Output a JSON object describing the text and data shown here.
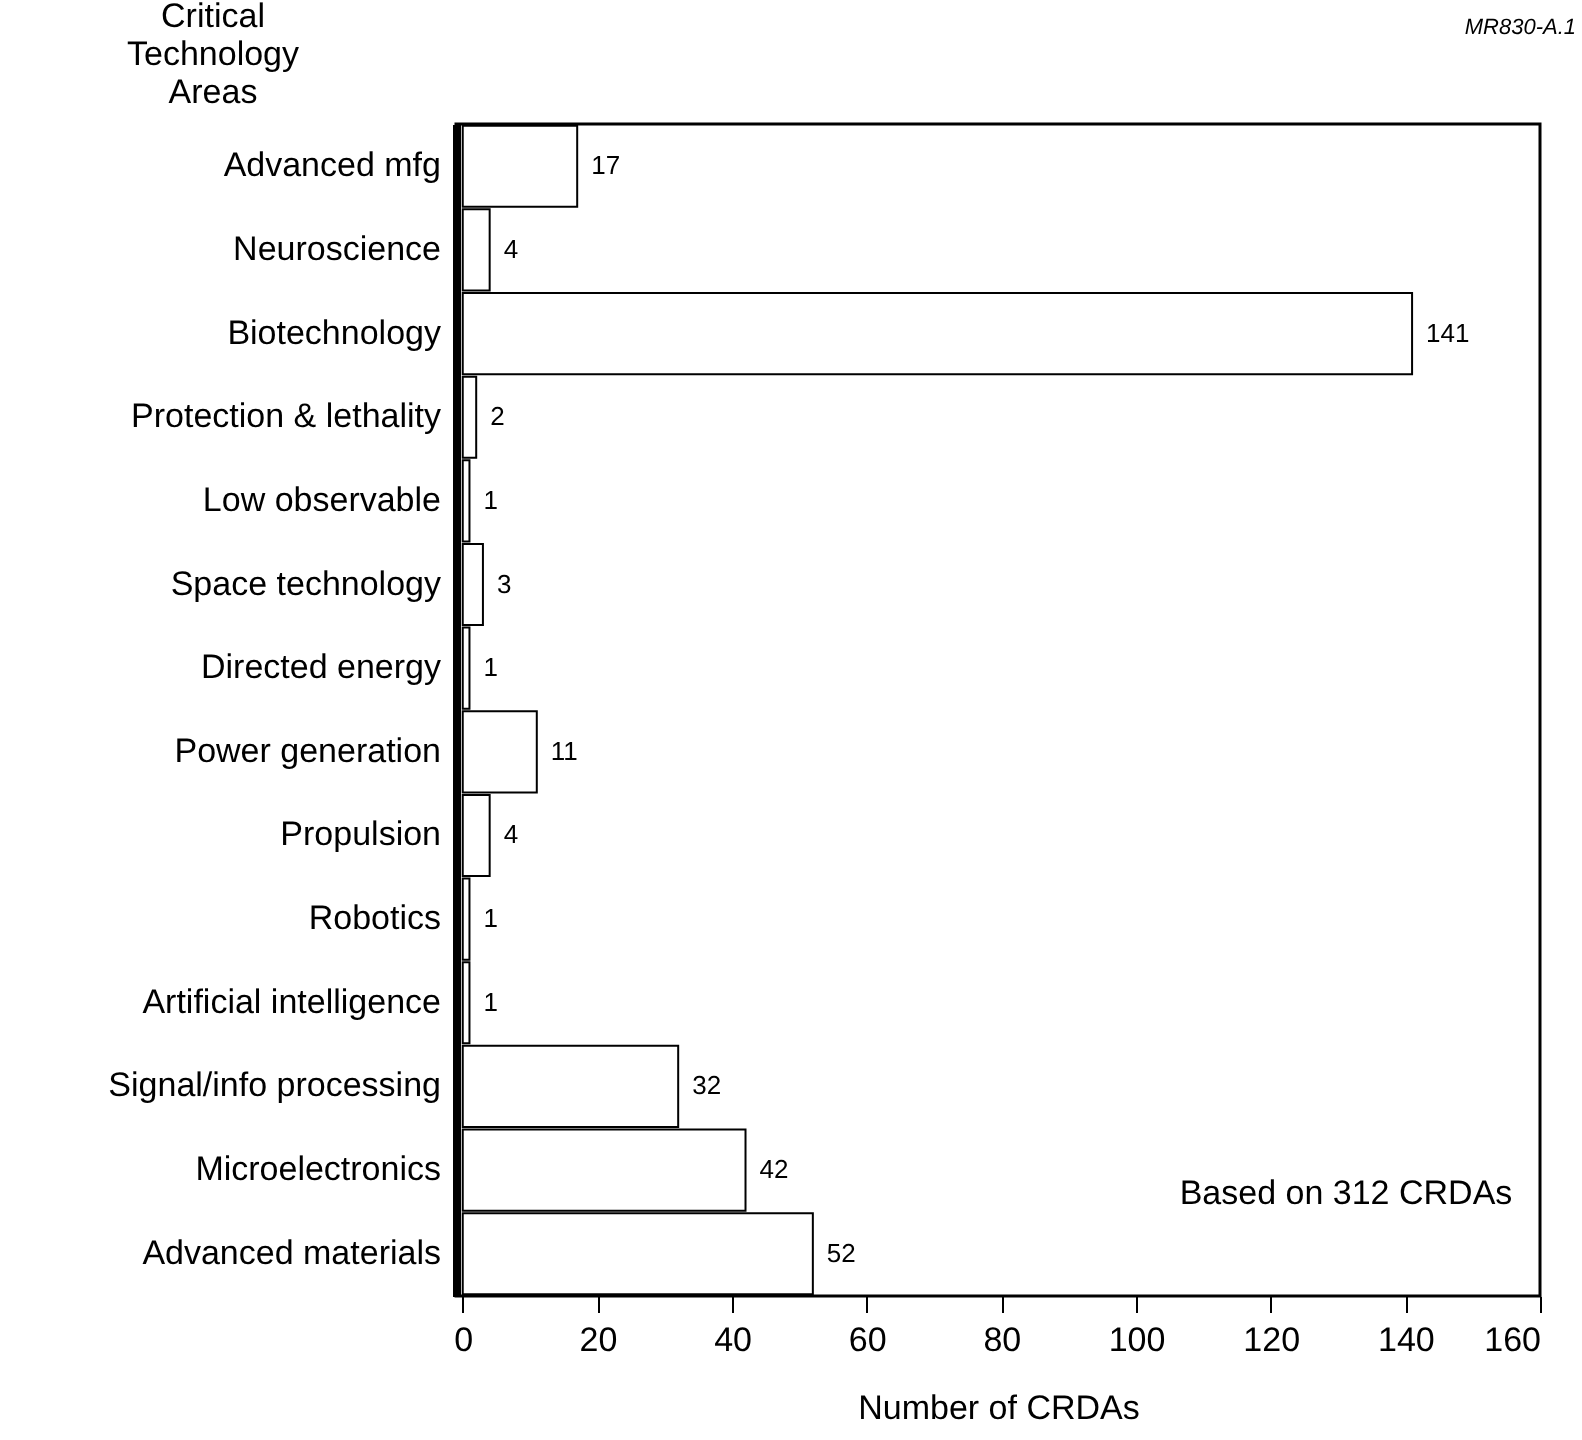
{
  "chart_data": {
    "type": "bar",
    "orientation": "horizontal",
    "ylabel": "Critical Technology Areas",
    "xlabel": "Number of CRDAs",
    "categories": [
      "Advanced mfg",
      "Neuroscience",
      "Biotechnology",
      "Protection & lethality",
      "Low observable",
      "Space technology",
      "Directed energy",
      "Power generation",
      "Propulsion",
      "Robotics",
      "Artificial intelligence",
      "Signal/info processing",
      "Microelectronics",
      "Advanced materials"
    ],
    "values": [
      17,
      4,
      141,
      2,
      1,
      3,
      1,
      11,
      4,
      1,
      1,
      32,
      42,
      52
    ],
    "color": "#ffffff",
    "data_labels": true,
    "xlim": [
      -1,
      160
    ],
    "xticks": [
      0,
      20,
      40,
      60,
      80,
      100,
      120,
      140,
      160
    ],
    "grid": false,
    "annotations": [
      "Based on 312 CRDAs",
      "MR830-A.1"
    ]
  }
}
